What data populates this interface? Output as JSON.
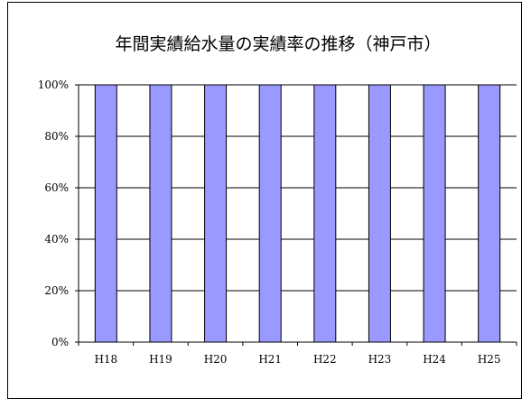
{
  "chart_data": {
    "type": "bar",
    "title": "年間実績給水量の実績率の推移（神戸市）",
    "xlabel": "",
    "ylabel": "",
    "categories": [
      "H18",
      "H19",
      "H20",
      "H21",
      "H22",
      "H23",
      "H24",
      "H25"
    ],
    "values": [
      100,
      100,
      100,
      100,
      100,
      100,
      100,
      100
    ],
    "ylim": [
      0,
      100
    ],
    "yticks": [
      "0%",
      "20%",
      "40%",
      "60%",
      "80%",
      "100%"
    ],
    "bar_color": "#9999ff",
    "grid": true,
    "legend": "none"
  }
}
